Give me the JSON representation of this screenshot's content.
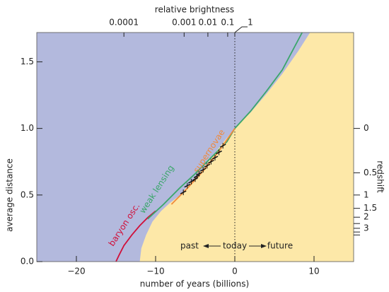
{
  "chart_data": {
    "type": "line",
    "title": "relative brightness",
    "x_label": "number of years (billions)",
    "y_label": "average distance",
    "y2_label": "redshift",
    "xlim": [
      -25,
      15
    ],
    "ylim": [
      0,
      1.72
    ],
    "xticks": [
      {
        "value": -20,
        "label": "−20"
      },
      {
        "value": -10,
        "label": "−10"
      },
      {
        "value": 0,
        "label": "0"
      },
      {
        "value": 10,
        "label": "10"
      }
    ],
    "yticks": [
      {
        "value": 0,
        "label": "0.0"
      },
      {
        "value": 0.5,
        "label": "0.5"
      },
      {
        "value": 1,
        "label": "1.0"
      },
      {
        "value": 1.5,
        "label": "1.5"
      }
    ],
    "x2ticks": [
      {
        "value": -14,
        "label": "0.0001"
      },
      {
        "value": -6.4,
        "label": "0.001"
      },
      {
        "value": -3.4,
        "label": "0.01"
      },
      {
        "value": -0.9,
        "label": "0.1"
      },
      {
        "value": 0,
        "label": "1"
      }
    ],
    "y2scale": "1/(1+z)",
    "y2ticks": [
      0,
      0.5,
      1,
      1.5,
      2,
      3
    ],
    "y2minor_ticks": [
      2.5,
      3.5,
      4
    ],
    "background_color": "#b3b9dd",
    "region": {
      "color": "#fde8a8",
      "x": [
        -12,
        -11.8,
        -11.2,
        -10.4,
        -9.3,
        -8.2,
        -6.9,
        -5.5,
        -4,
        -2.7,
        -1.4,
        0,
        2,
        4,
        6,
        8,
        9.5
      ],
      "values": [
        0,
        0.1,
        0.2,
        0.3,
        0.38,
        0.44,
        0.5,
        0.6,
        0.7,
        0.8,
        0.9,
        1.0,
        1.12,
        1.26,
        1.41,
        1.58,
        1.72
      ]
    },
    "series": [
      {
        "name": "baryon osc.",
        "color": "#d0103a",
        "x": [
          -15,
          -14.6,
          -14,
          -13,
          -12,
          -11,
          -10
        ],
        "values": [
          0,
          0.05,
          0.12,
          0.2,
          0.27,
          0.33,
          0.38
        ]
      },
      {
        "name": "weak lensing",
        "color": "#3aa66a",
        "x": [
          -11,
          -9,
          -7,
          -5,
          -3,
          -1,
          0,
          2,
          4,
          6,
          8.5
        ],
        "values": [
          0.32,
          0.43,
          0.55,
          0.66,
          0.78,
          0.9,
          1.0,
          1.13,
          1.28,
          1.44,
          1.72
        ]
      },
      {
        "name": "supernovae",
        "color": "#f08a3c",
        "x": [
          -8,
          -6,
          -4,
          -2,
          0
        ],
        "values": [
          0.43,
          0.55,
          0.68,
          0.83,
          1.0
        ]
      }
    ],
    "points": {
      "color": "#111",
      "x": [
        -6.5,
        -6,
        -5.5,
        -5,
        -4.8,
        -4.5,
        -4,
        -3.5,
        -3,
        -2.5,
        -2,
        -1.5
      ],
      "values": [
        0.52,
        0.57,
        0.6,
        0.62,
        0.64,
        0.66,
        0.69,
        0.72,
        0.75,
        0.78,
        0.82,
        0.87
      ]
    },
    "marker_x": 0,
    "annotations": [
      "past",
      "today",
      "future"
    ]
  }
}
